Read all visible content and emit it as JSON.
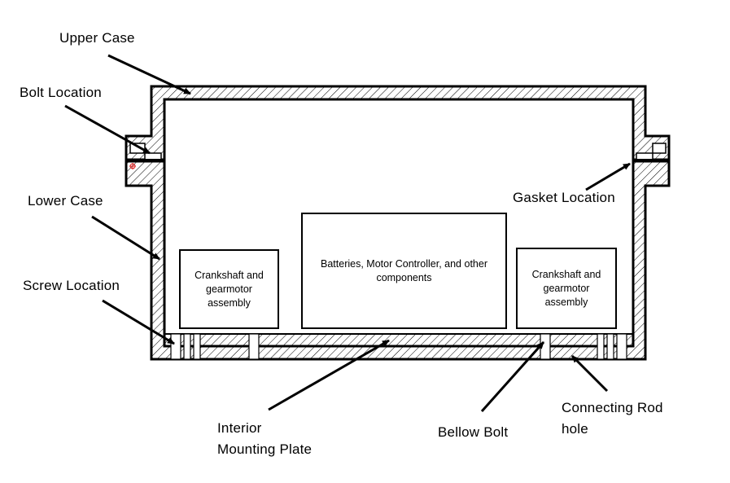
{
  "labels": {
    "upper_case": "Upper Case",
    "bolt_location": "Bolt Location",
    "lower_case": "Lower Case",
    "screw_location": "Screw Location",
    "gasket_location": "Gasket Location",
    "interior_mounting_plate_line1": "Interior",
    "interior_mounting_plate_line2": "Mounting Plate",
    "bellow_bolt": "Bellow Bolt",
    "connecting_rod_hole_line1": "Connecting Rod",
    "connecting_rod_hole_line2": "hole"
  },
  "components": {
    "left_crankshaft": "Crankshaft and gearmotor assembly",
    "center_electronics": "Batteries, Motor Controller, and other components",
    "right_crankshaft": "Crankshaft and gearmotor assembly"
  }
}
